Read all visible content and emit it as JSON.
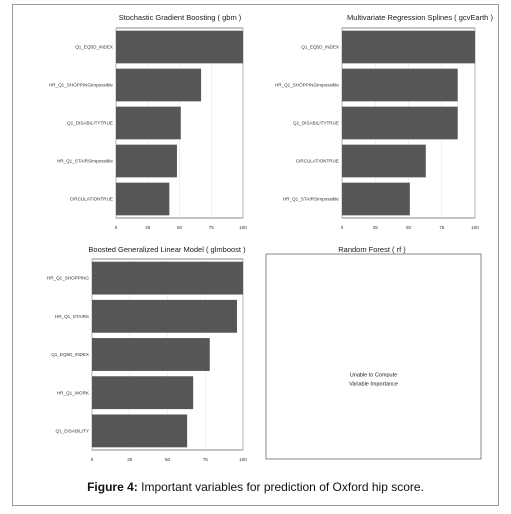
{
  "caption": {
    "label": "Figure 4:",
    "text": "Important variables for prediction of Oxford hip score."
  },
  "colors": {
    "bar": "#545657",
    "frame": "#3a3a3a",
    "grid": "#e3e3e3"
  },
  "chart_data": [
    {
      "type": "bar",
      "orientation": "horizontal",
      "title": "Stochastic Gradient Boosting ( gbm )",
      "categories": [
        "Q1_EQ5D_INDEX",
        "HR_Q1_SHOPPINGImpossible",
        "Q1_DISABILITYTRUE",
        "HR_Q1_STAIRSImpossible",
        "CIRCULATIONTRUE"
      ],
      "values": [
        100,
        67,
        51,
        48,
        42
      ],
      "xlim": [
        0,
        100
      ],
      "xticks": [
        "0",
        "25",
        "50",
        "75",
        "100"
      ],
      "grid": true
    },
    {
      "type": "bar",
      "orientation": "horizontal",
      "title": "Multivariate Regression Splines ( gcvEarth )",
      "categories": [
        "Q1_EQ5D_INDEX",
        "HR_Q1_SHOPPINGImpossible",
        "Q1_DISABILITYTRUE",
        "CIRCULATIONTRUE",
        "HR_Q1_STAIRSImpossible"
      ],
      "values": [
        100,
        87,
        87,
        63,
        51
      ],
      "xlim": [
        0,
        100
      ],
      "xticks": [
        "0",
        "25",
        "50",
        "75",
        "100"
      ],
      "grid": true
    },
    {
      "type": "bar",
      "orientation": "horizontal",
      "title": "Boosted Generalized Linear Model ( glmboost )",
      "categories": [
        "HR_Q1_SHOPPING",
        "HR_Q1_STAIRS",
        "Q1_EQ5D_INDEX",
        "HR_Q1_WORK",
        "Q1_DISABILITY"
      ],
      "values": [
        100,
        96,
        78,
        67,
        63
      ],
      "xlim": [
        0,
        100
      ],
      "xticks": [
        "0",
        "25",
        "50",
        "75",
        "100"
      ],
      "grid": true
    },
    {
      "type": "bar",
      "title": "Random Forest ( rf )",
      "message": [
        "Unable to Compute",
        "Variable Importance"
      ],
      "categories": [],
      "values": []
    }
  ]
}
